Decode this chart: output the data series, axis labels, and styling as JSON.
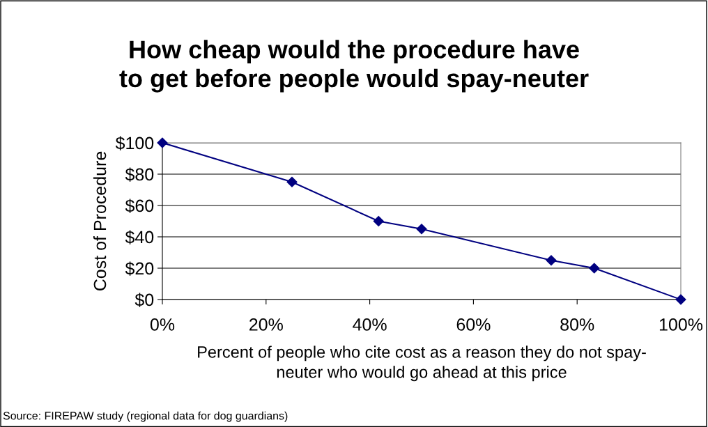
{
  "chart_data": {
    "type": "line",
    "title": "How cheap would the procedure have\nto get before people would spay-neuter",
    "xlabel": "Percent of people who cite cost as a reason they do not spay-\nneuter who would go ahead at this price",
    "ylabel": "Cost of Procedure",
    "annotations": [
      "Source: FIREPAW study (regional data for dog guardians)"
    ],
    "x": [
      0,
      25,
      41.7,
      50,
      75,
      83.3,
      100
    ],
    "series": [
      {
        "color": "#000080",
        "values": [
          100,
          75,
          50,
          45,
          25,
          20,
          0
        ]
      }
    ],
    "xlim": [
      0,
      100
    ],
    "xticks": [
      {
        "value": 0,
        "label": "0%"
      },
      {
        "value": 20,
        "label": "20%"
      },
      {
        "value": 40,
        "label": "40%"
      },
      {
        "value": 60,
        "label": "60%"
      },
      {
        "value": 80,
        "label": "80%"
      },
      {
        "value": 100,
        "label": "100%"
      }
    ],
    "ylim": [
      0,
      100
    ],
    "yticks": [
      {
        "value": 0,
        "label": "$0"
      },
      {
        "value": 20,
        "label": "$20"
      },
      {
        "value": 40,
        "label": "$40"
      },
      {
        "value": 60,
        "label": "$60"
      },
      {
        "value": 80,
        "label": "$80"
      },
      {
        "value": 100,
        "label": "$100"
      }
    ],
    "grid": "y",
    "marker": "diamond",
    "line_style": "solid",
    "legend": false
  }
}
